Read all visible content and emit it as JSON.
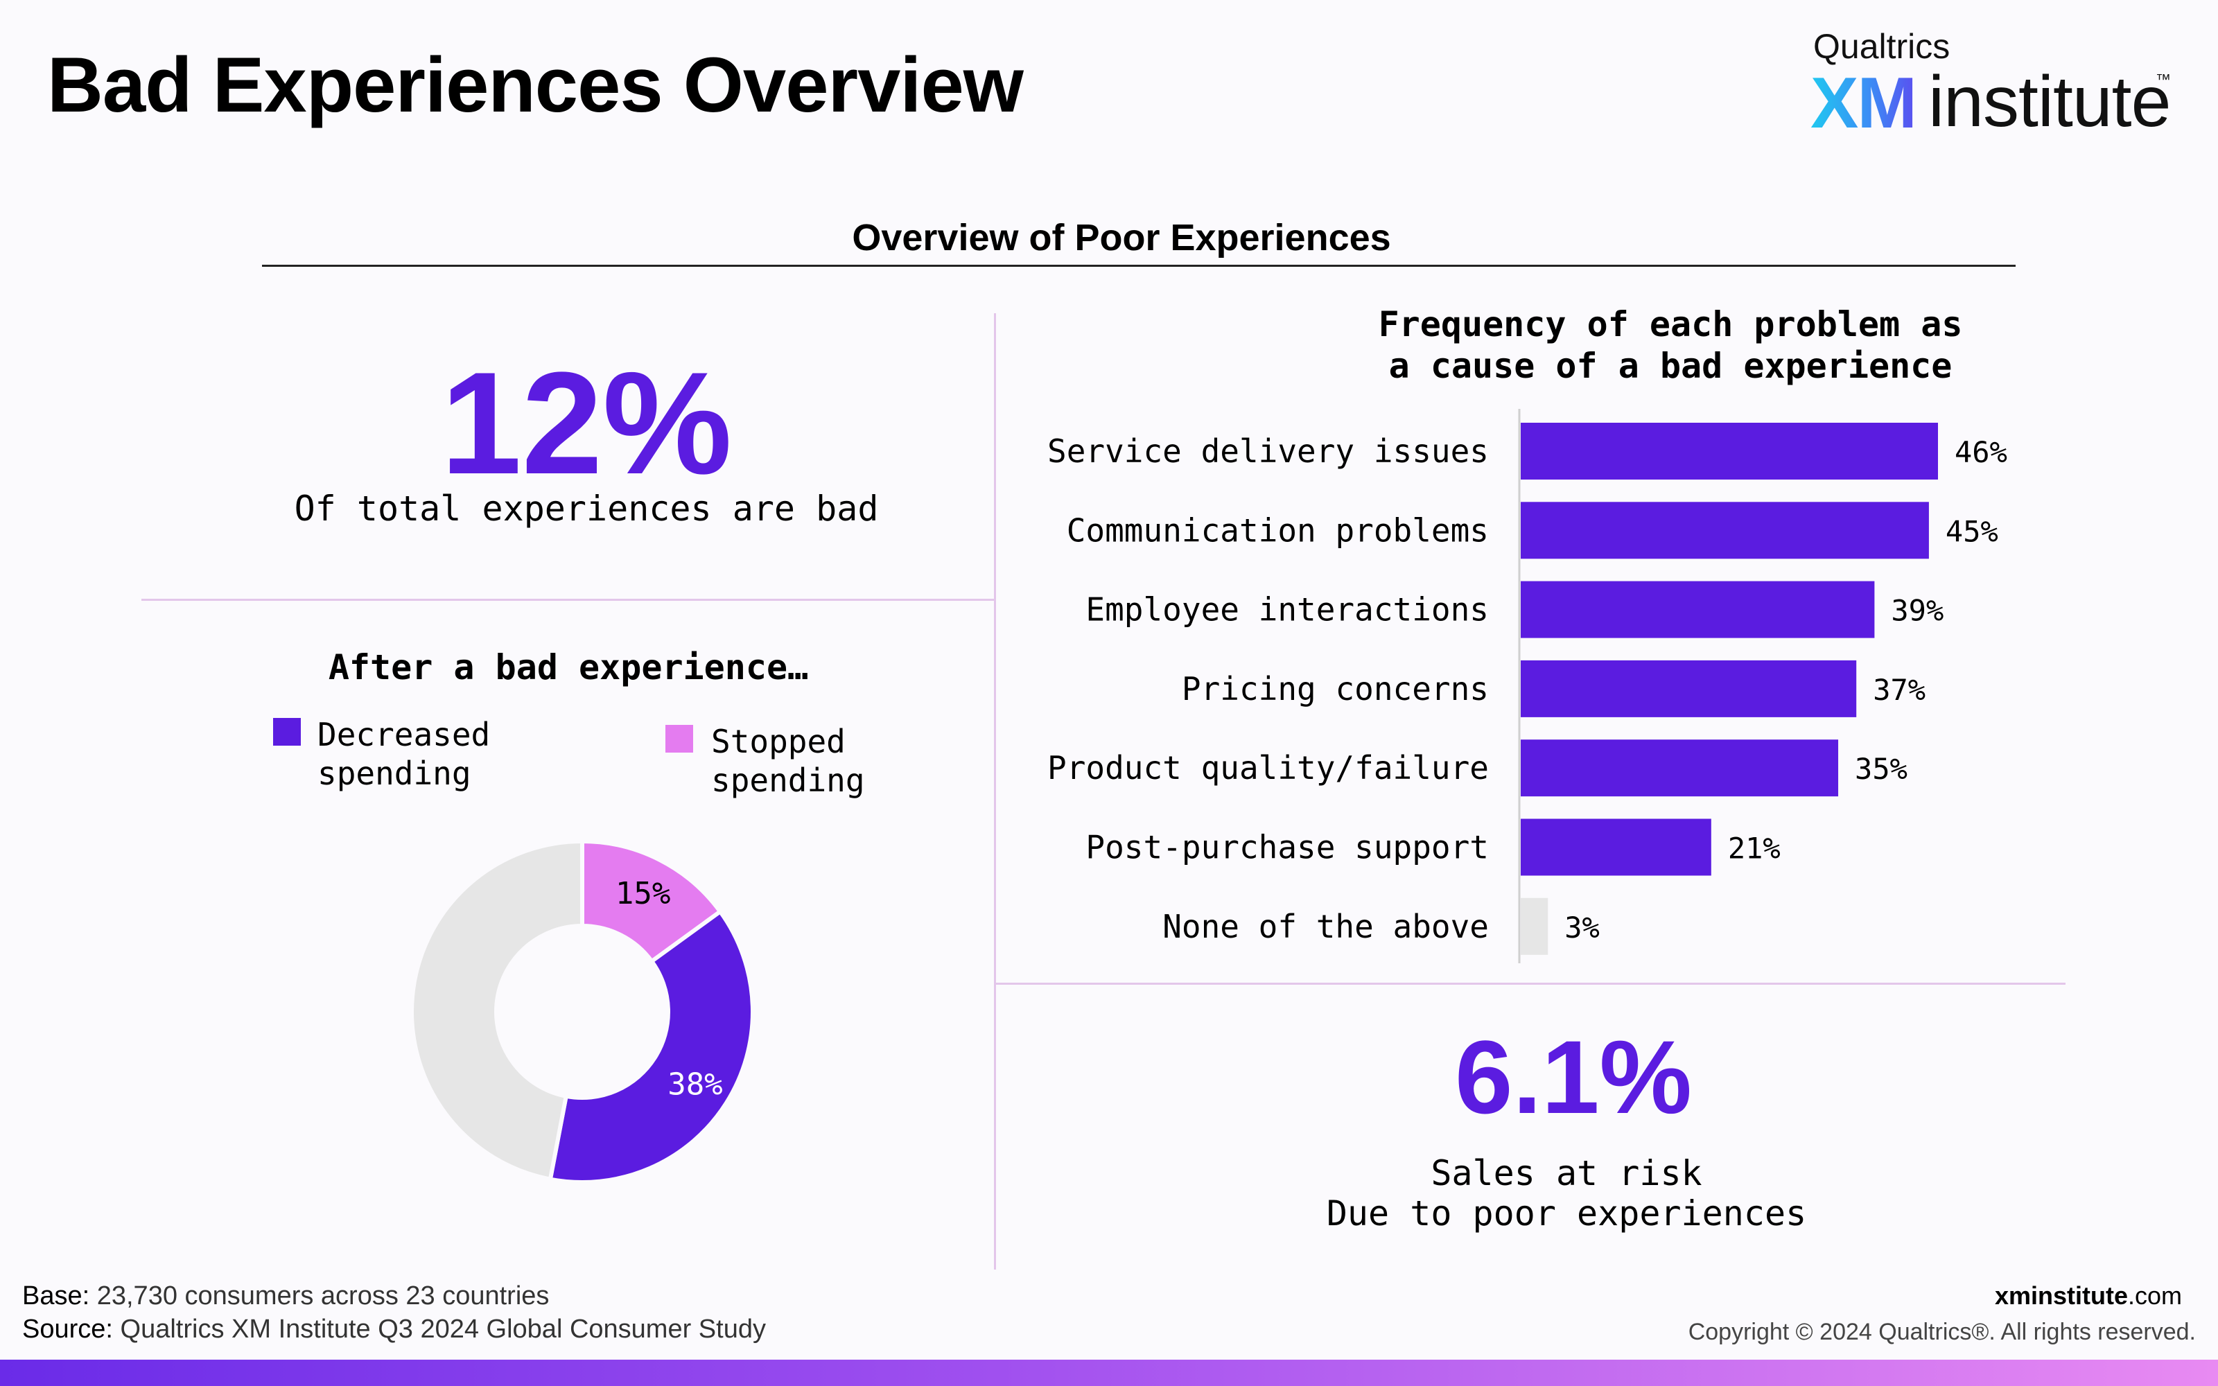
{
  "header": {
    "title": "Bad Experiences Overview",
    "logo": {
      "company": "Qualtrics",
      "xm": "XM",
      "product": "institute",
      "tm": "™"
    }
  },
  "section": {
    "title": "Overview of Poor Experiences"
  },
  "stat_bad": {
    "value": "12%",
    "label": "Of total experiences are bad"
  },
  "donut": {
    "title": "After a bad experience…",
    "legend": [
      {
        "label_line1": "Decreased",
        "label_line2": "spending",
        "color": "#5b1ce0"
      },
      {
        "label_line1": "Stopped",
        "label_line2": "spending",
        "color": "#e47cf0"
      }
    ]
  },
  "bar_section": {
    "title_line1": "Frequency of each problem as",
    "title_line2": "a cause of a bad experience"
  },
  "stat_risk": {
    "value": "6.1%",
    "label_line1": "Sales at risk",
    "label_line2": "Due to poor experiences"
  },
  "footer": {
    "base_label": "Base:",
    "base_text": "23,730 consumers across 23 countries",
    "source_label": "Source:",
    "source_text": "Qualtrics XM Institute Q3 2024 Global Consumer Study",
    "site_bold": "xminstitute",
    "site_rest": ".com",
    "copyright": "Copyright © 2024 Qualtrics®. All rights reserved."
  },
  "colors": {
    "purple": "#5b1ce0",
    "pink": "#e47cf0",
    "gray": "#e6e6e6"
  },
  "chart_data": [
    {
      "type": "pie",
      "title": "After a bad experience…",
      "donut": true,
      "slices": [
        {
          "label": "Stopped spending",
          "value": 15,
          "display": "15%",
          "color": "#e47cf0"
        },
        {
          "label": "Decreased spending",
          "value": 38,
          "display": "38%",
          "color": "#5b1ce0"
        },
        {
          "label": "",
          "value": 47,
          "display": "",
          "color": "#e6e6e6"
        }
      ]
    },
    {
      "type": "bar",
      "orientation": "horizontal",
      "title": "Frequency of each problem as a cause of a bad experience",
      "categories": [
        "Service delivery issues",
        "Communication problems",
        "Employee interactions",
        "Pricing concerns",
        "Product quality/failure",
        "Post-purchase support",
        "None of the above"
      ],
      "values": [
        46,
        45,
        39,
        37,
        35,
        21,
        3
      ],
      "labels": [
        "46%",
        "45%",
        "39%",
        "37%",
        "35%",
        "21%",
        "3%"
      ],
      "colors": [
        "#5b1ce0",
        "#5b1ce0",
        "#5b1ce0",
        "#5b1ce0",
        "#5b1ce0",
        "#5b1ce0",
        "#e6e6e6"
      ],
      "xlim": [
        0,
        46
      ]
    }
  ]
}
